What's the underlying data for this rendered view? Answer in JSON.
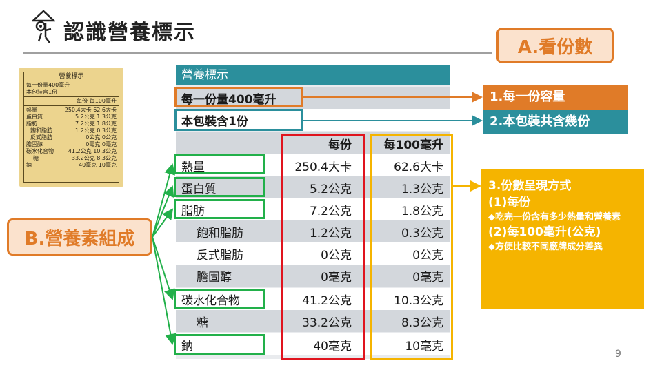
{
  "header": {
    "title": "認識營養標示"
  },
  "section_a": {
    "label": "A.看份數"
  },
  "section_b": {
    "label": "B.營養素組成"
  },
  "product_label": {
    "title": "營養標示",
    "lines": [
      "每一份量400毫升",
      "本包裝含1份"
    ],
    "columns": [
      "每份",
      "每100毫升"
    ],
    "rows": [
      [
        "熱量",
        "250.4大卡",
        "62.6大卡"
      ],
      [
        "蛋白質",
        "5.2公克",
        "1.3公克"
      ],
      [
        "脂肪",
        "7.2公克",
        "1.8公克"
      ],
      [
        "飽和脂肪",
        "1.2公克",
        "0.3公克"
      ],
      [
        "反式脂肪",
        "0公克",
        "0公克"
      ],
      [
        "膽固醇",
        "0毫克",
        "0毫克"
      ],
      [
        "碳水化合物",
        "41.2公克",
        "10.3公克"
      ],
      [
        "糖",
        "33.2公克",
        "8.3公克"
      ],
      [
        "鈉",
        "40毫克",
        "10毫克"
      ]
    ]
  },
  "table": {
    "title": "營養標示",
    "serving_size": "每一份量400毫升",
    "servings_per_pack": "本包裝含1份",
    "col_per_serving": "每份",
    "col_per_100": "每100毫升",
    "rows": [
      {
        "name": "熱量",
        "per_serving": "250.4大卡",
        "per_100": "62.6大卡"
      },
      {
        "name": "蛋白質",
        "per_serving": "5.2公克",
        "per_100": "1.3公克"
      },
      {
        "name": "脂肪",
        "per_serving": "7.2公克",
        "per_100": "1.8公克"
      },
      {
        "name": "飽和脂肪",
        "per_serving": "1.2公克",
        "per_100": "0.3公克"
      },
      {
        "name": "反式脂肪",
        "per_serving": "0公克",
        "per_100": "0公克"
      },
      {
        "name": "膽固醇",
        "per_serving": "0毫克",
        "per_100": "0毫克"
      },
      {
        "name": "碳水化合物",
        "per_serving": "41.2公克",
        "per_100": "10.3公克"
      },
      {
        "name": "糖",
        "per_serving": "33.2公克",
        "per_100": "8.3公克"
      },
      {
        "name": "鈉",
        "per_serving": "40毫克",
        "per_100": "10毫克"
      }
    ]
  },
  "callouts": {
    "c1": "1.每一份容量",
    "c2": "2.本包裝共含幾份",
    "c3_title": "3.份數呈現方式",
    "c3_sub1": "(1)每份",
    "c3_note1": "◆吃完一份含有多少熱量和營養素",
    "c3_sub2": "(2)每100毫升(公克)",
    "c3_note2": "◆方便比較不同廠牌成分差異"
  },
  "colors": {
    "orange": "#e07b28",
    "teal": "#2b8f9c",
    "green": "#22b04a",
    "red": "#e0141e",
    "yellow": "#f5b400"
  },
  "page_number": "9"
}
